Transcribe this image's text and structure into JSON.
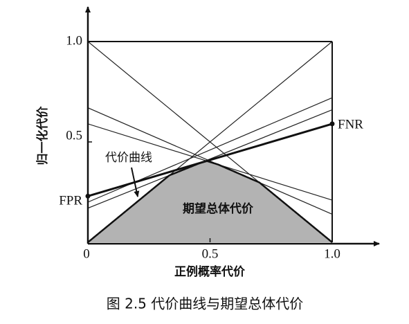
{
  "chart_data": {
    "type": "cost-curve",
    "caption": "图 2.5  代价曲线与期望总体代价",
    "x_label": "正例概率代价",
    "y_label": "归一化代价",
    "xlim": [
      0,
      1
    ],
    "ylim": [
      0,
      1
    ],
    "xticks": [
      0,
      0.5,
      {
        "value": 1,
        "label": "1.0"
      }
    ],
    "yticks": [
      0.5,
      {
        "value": 1,
        "label": "1.0"
      }
    ],
    "x": [
      0,
      1
    ],
    "series": [
      {
        "values": [
          1,
          0
        ]
      },
      {
        "values": [
          0,
          1
        ]
      },
      {
        "values": [
          0.67,
          0.14
        ]
      },
      {
        "values": [
          0.59,
          0.21
        ]
      },
      {
        "values": [
          0.2,
          0.72
        ]
      },
      {
        "values": [
          0.17,
          0.66
        ]
      }
    ],
    "highlight": {
      "values": [
        0.23,
        0.59
      ],
      "labels": [
        "FPR",
        "FNR"
      ],
      "name": "代价曲线"
    },
    "area_label": "期望总体代价",
    "area_color": "#b3b3b3"
  }
}
